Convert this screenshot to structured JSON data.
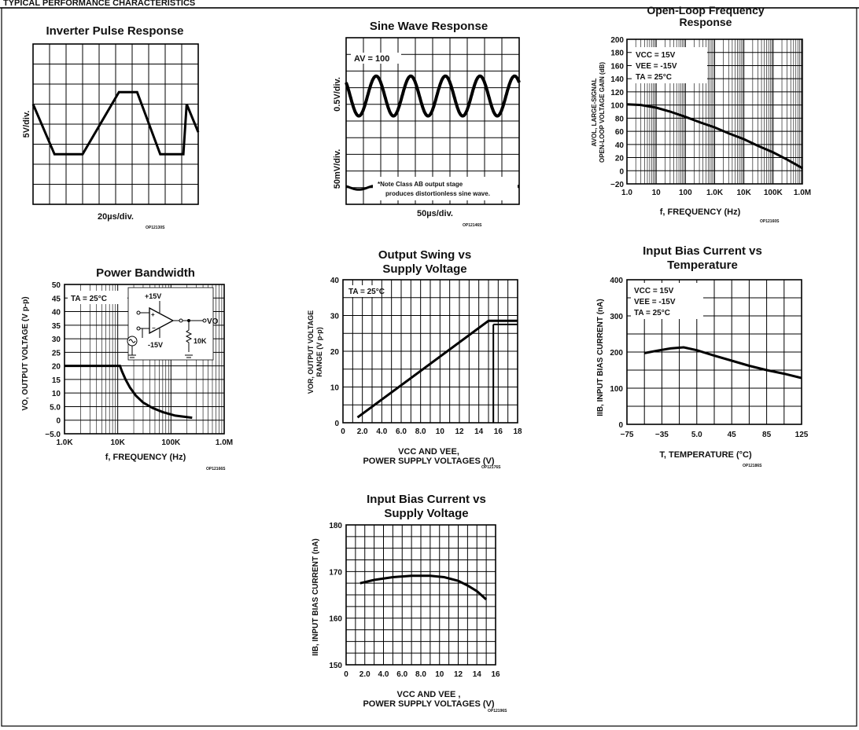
{
  "page": {
    "header_fragment": "TYPICAL PERFORMANCE CHARACTERISTICS"
  },
  "chart_data": [
    {
      "id": "inverter",
      "type": "line",
      "title": "Inverter Pulse Response",
      "ylabel": "5V/div.",
      "xlabel": "20µs/div.",
      "code": "OP12130S",
      "grid": true,
      "x_divisions": 10,
      "y_divisions": 8,
      "trace": {
        "x": [
          0,
          1.3,
          3.0,
          5.2,
          6.3,
          7.7,
          9.1,
          9.3,
          10
        ],
        "y": [
          5.0,
          2.5,
          2.5,
          5.6,
          5.6,
          2.5,
          2.5,
          5.0,
          3.6
        ]
      }
    },
    {
      "id": "sine",
      "type": "line",
      "title": "Sine Wave Response",
      "ylabel_top": "0.5V/div.",
      "ylabel_bottom": "50mV/div.",
      "xlabel": "50µs/div.",
      "code": "OP12146S",
      "annotation": "AV = 100",
      "note_line1": "*Note Class AB output stage",
      "note_line2": "produces distortionless sine wave.",
      "grid": true,
      "x_divisions": 10,
      "y_divisions": 10,
      "output_wave": {
        "center_div": 6.5,
        "amplitude_div": 1.2,
        "periods": 5
      },
      "input_wave": {
        "center_div": 1.0,
        "amplitude_div": 0.12,
        "periods": 5
      }
    },
    {
      "id": "openloop",
      "type": "line",
      "title_line1": "Open-Loop Frequency",
      "title_line2": "Response",
      "ylabel_line1": "AVOL, LARGE-SIGNAL",
      "ylabel_line2": "OPEN-LOOP VOLTAGE GAIN (dB)",
      "xlabel": "f, FREQUENCY (Hz)",
      "code": "OP12160S",
      "xscale": "log",
      "xlim": [
        1,
        1000000
      ],
      "ylim": [
        -20,
        200
      ],
      "x_tick_labels": [
        "1.0",
        "10",
        "100",
        "1.0K",
        "10K",
        "100K",
        "1.0M"
      ],
      "y_ticks": [
        -20,
        0,
        20,
        40,
        60,
        80,
        100,
        120,
        140,
        160,
        180,
        200
      ],
      "conditions": [
        "VCC = 15V",
        "VEE = -15V",
        "TA = 25°C"
      ],
      "series": [
        {
          "x": [
            1,
            3,
            10,
            30,
            100,
            300,
            1000,
            3000,
            10000,
            30000,
            100000,
            300000,
            1000000
          ],
          "y": [
            101,
            100,
            96,
            90,
            82,
            74,
            66,
            57,
            48,
            38,
            28,
            17,
            4
          ]
        }
      ]
    },
    {
      "id": "powerbw",
      "type": "line",
      "title": "Power Bandwidth",
      "ylabel": "VO, OUTPUT VOLTAGE (V p-p)",
      "xlabel": "f, FREQUENCY (Hz)",
      "code": "OP12166S",
      "xscale": "log",
      "xlim": [
        1000,
        1000000
      ],
      "ylim": [
        -5,
        50
      ],
      "x_tick_labels": [
        "1.0K",
        "10K",
        "100K",
        "1.0M"
      ],
      "y_tick_labels": [
        "50",
        "45",
        "40",
        "35",
        "30",
        "25",
        "20",
        "15",
        "10",
        "5.0",
        "0",
        "-5.0"
      ],
      "conditions": [
        "TA = 25°C"
      ],
      "circuit": {
        "supply_pos": "+15V",
        "supply_neg": "-15V",
        "output": "VO",
        "load": "10K"
      },
      "series": [
        {
          "x": [
            1000,
            5000,
            11000,
            12000,
            14000,
            17000,
            22000,
            30000,
            45000,
            70000,
            120000,
            250000
          ],
          "y": [
            20,
            20,
            20,
            18,
            15,
            12,
            9,
            6.5,
            4.5,
            3,
            1.7,
            0.9
          ]
        }
      ]
    },
    {
      "id": "swing",
      "type": "line",
      "title_line1": "Output Swing vs",
      "title_line2": "Supply Voltage",
      "ylabel_line1": "VOR, OUTPUT VOLTAGE",
      "ylabel_line2": "RANGE (V p-p)",
      "xlabel_line1": "VCC AND VEE,",
      "xlabel_line2": "POWER SUPPLY VOLTAGES (V)",
      "code": "OP12176S",
      "xlim": [
        0,
        18
      ],
      "ylim": [
        0,
        40
      ],
      "x_tick_labels": [
        "0",
        "2.0",
        "4.0",
        "6.0",
        "8.0",
        "10",
        "12",
        "14",
        "16",
        "18"
      ],
      "y_ticks": [
        0,
        10,
        20,
        30,
        40
      ],
      "conditions": [
        "TA = 25°C"
      ],
      "series": [
        {
          "x": [
            1.5,
            15,
            18
          ],
          "y": [
            1.5,
            28.5,
            28.5
          ]
        },
        {
          "x": [
            15.5,
            18
          ],
          "y": [
            27.5,
            27.5
          ]
        }
      ]
    },
    {
      "id": "ibtemp",
      "type": "line",
      "title_line1": "Input Bias Current vs",
      "title_line2": "Temperature",
      "ylabel": "IIB, INPUT BIAS CURRENT (nA)",
      "xlabel": "T, TEMPERATURE (°C)",
      "code": "OP12186S",
      "xlim": [
        -75,
        125
      ],
      "ylim": [
        0,
        400
      ],
      "x_tick_labels": [
        "-75",
        "-35",
        "5.0",
        "45",
        "85",
        "125"
      ],
      "y_ticks": [
        0,
        100,
        200,
        300,
        400
      ],
      "conditions": [
        "VCC = 15V",
        "VEE = -15V",
        "TA = 25°C"
      ],
      "series": [
        {
          "x": [
            -55,
            -40,
            -25,
            -10,
            5,
            25,
            45,
            65,
            85,
            105,
            125
          ],
          "y": [
            197,
            204,
            210,
            213,
            205,
            190,
            176,
            162,
            150,
            140,
            128
          ]
        }
      ]
    },
    {
      "id": "ibsupply",
      "type": "line",
      "title_line1": "Input Bias Current vs",
      "title_line2": "Supply Voltage",
      "ylabel": "IIB, INPUT BIAS CURRENT (nA)",
      "xlabel_line1": "VCC AND VEE ,",
      "xlabel_line2": "POWER SUPPLY VOLTAGES (V)",
      "code": "OP12196S",
      "xlim": [
        0,
        16
      ],
      "ylim": [
        150,
        180
      ],
      "x_tick_labels": [
        "0",
        "2.0",
        "4.0",
        "6.0",
        "8.0",
        "10",
        "12",
        "14",
        "16"
      ],
      "y_ticks": [
        150,
        160,
        170,
        180
      ],
      "series": [
        {
          "x": [
            1.5,
            3,
            5,
            7,
            9,
            10.5,
            12,
            13,
            14,
            15
          ],
          "y": [
            167.5,
            168.2,
            168.8,
            169.1,
            169.1,
            168.8,
            168,
            167,
            165.8,
            164
          ]
        }
      ]
    }
  ]
}
